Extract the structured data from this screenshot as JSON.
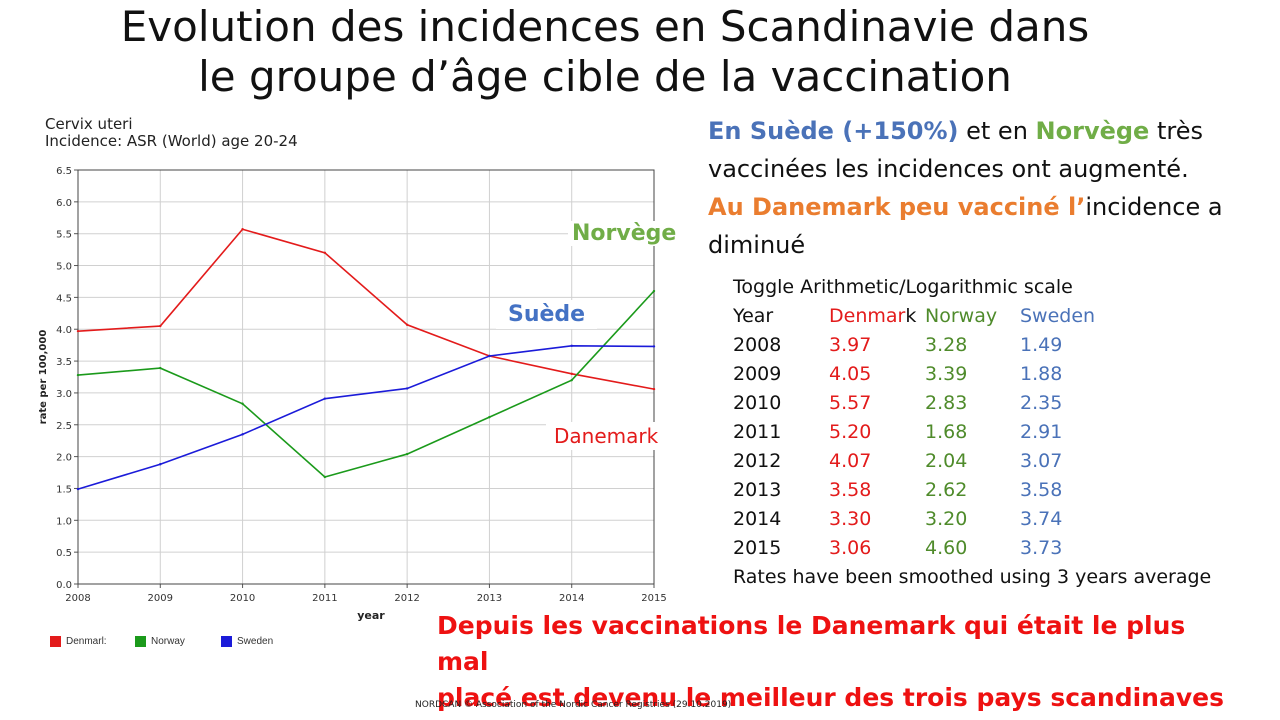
{
  "slide": {
    "title_line1": "Evolution des incidences en Scandinavie dans",
    "title_line2": "le groupe d’âge cible de la vaccination",
    "para": {
      "l1_a": "En Suède (+150%)",
      "l1_b": " et en ",
      "l1_c": "Norvège",
      "l1_d": " très",
      "l2": "vaccinées les incidences ont augmenté.",
      "l3_a": "Au Danemark peu vacciné  l’",
      "l3_b": "incidence a",
      "l4": "diminué"
    },
    "conclusion_l1": "Depuis les vaccinations le Danemark qui était le plus mal",
    "conclusion_l2": "placé est devenu le meilleur des trois pays scandinaves",
    "footer": "NORDCAN © Association of the Nordic Cancer Registries (29.10.2019)",
    "callouts": {
      "norway": "Norvège",
      "sweden": "Suède",
      "denmark": "Danemark"
    }
  },
  "table": {
    "toggle": "Toggle Arithmetic/Logarithmic scale",
    "headers": {
      "year": "Year",
      "denmark_a": "Denmar",
      "denmark_b": "k",
      "norway": "Norway",
      "sweden": "Sweden"
    },
    "rows": [
      {
        "year": "2008",
        "dk": "3.97",
        "no": "3.28",
        "se": "1.49"
      },
      {
        "year": "2009",
        "dk": "4.05",
        "no": "3.39",
        "se": "1.88"
      },
      {
        "year": "2010",
        "dk": "5.57",
        "no": "2.83",
        "se": "2.35"
      },
      {
        "year": "2011",
        "dk": "5.20",
        "no": "1.68",
        "se": "2.91"
      },
      {
        "year": "2012",
        "dk": "4.07",
        "no": "2.04",
        "se": "3.07"
      },
      {
        "year": "2013",
        "dk": "3.58",
        "no": "2.62",
        "se": "3.58"
      },
      {
        "year": "2014",
        "dk": "3.30",
        "no": "3.20",
        "se": "3.74"
      },
      {
        "year": "2015",
        "dk": "3.06",
        "no": "4.60",
        "se": "3.73"
      }
    ],
    "note": "Rates have been smoothed using 3 years average"
  },
  "chart_data": {
    "type": "line",
    "title": "Cervix uteri",
    "subtitle": "Incidence: ASR (World) age 20-24",
    "xlabel": "year",
    "ylabel": "rate per 100,000",
    "x": [
      2008,
      2009,
      2010,
      2011,
      2012,
      2013,
      2014,
      2015
    ],
    "ylim": [
      0,
      6.5
    ],
    "yticks": [
      "0.0",
      "0.5",
      "1.0",
      "1.5",
      "2.0",
      "2.5",
      "3.0",
      "3.5",
      "4.0",
      "4.5",
      "5.0",
      "5.5",
      "6.0",
      "6.5"
    ],
    "grid": true,
    "legend_position": "bottom-left",
    "series": [
      {
        "name": "Denmarl:",
        "color": "#e31b1b",
        "values": [
          3.97,
          4.05,
          5.57,
          5.2,
          4.07,
          3.58,
          3.3,
          3.06
        ]
      },
      {
        "name": "Norway",
        "color": "#1b9a1b",
        "values": [
          3.28,
          3.39,
          2.83,
          1.68,
          2.04,
          2.62,
          3.2,
          4.6
        ]
      },
      {
        "name": "Sweden",
        "color": "#1b1bd9",
        "values": [
          1.49,
          1.88,
          2.35,
          2.91,
          3.07,
          3.58,
          3.74,
          3.73
        ]
      }
    ]
  }
}
